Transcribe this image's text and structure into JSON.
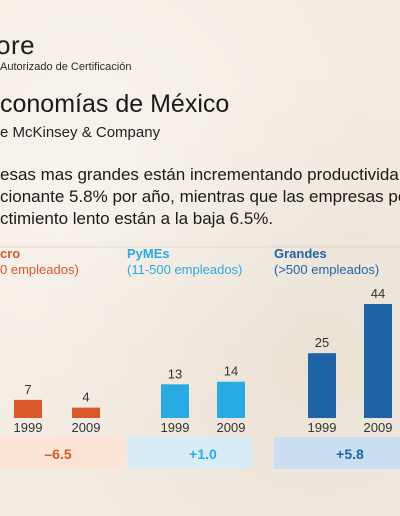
{
  "header": {
    "brand": "ore",
    "brand_sub": "Autorizado de Certificación",
    "title": "conomías de México",
    "source": "e McKinsey & Company"
  },
  "body": {
    "lines": [
      "esas mas grandes están incrementando productivida",
      "cionante 5.8% por año, mientras que las empresas pe",
      "ctimiento lento están a la baja 6.5%."
    ]
  },
  "colors": {
    "micro": "#d9572b",
    "pymes": "#2aaae2",
    "grandes": "#1e63a6",
    "micro_band": "#fbe4d6",
    "pymes_band": "#d8ecf8",
    "grandes_band": "#c9dff1"
  },
  "chart_data": {
    "type": "bar",
    "groups": [
      {
        "name": "cro",
        "subtitle": "0 empleados)",
        "categories": [
          "1999",
          "2009"
        ],
        "values": [
          7,
          4
        ],
        "change": "–6.5",
        "color_key": "micro"
      },
      {
        "name": "PyMEs",
        "subtitle": "(11-500 empleados)",
        "categories": [
          "1999",
          "2009"
        ],
        "values": [
          13,
          14
        ],
        "change": "+1.0",
        "color_key": "pymes"
      },
      {
        "name": "Grandes",
        "subtitle": "(>500 empleados)",
        "categories": [
          "1999",
          "2009"
        ],
        "values": [
          25,
          44
        ],
        "change": "+5.8",
        "color_key": "grandes"
      }
    ],
    "ylim": [
      0,
      44
    ]
  }
}
